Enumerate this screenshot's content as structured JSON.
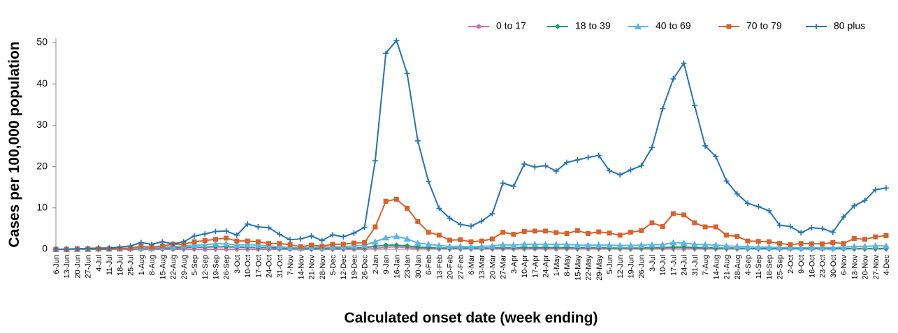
{
  "chart_data": {
    "type": "line",
    "y_label": "Cases per 100,000 population",
    "x_label": "Calculated onset date (week ending)",
    "categories": [
      "6-Jun",
      "13-Jun",
      "20-Jun",
      "27-Jun",
      "4-Jul",
      "11-Jul",
      "18-Jul",
      "25-Jul",
      "1-Aug",
      "8-Aug",
      "15-Aug",
      "22-Aug",
      "29-Aug",
      "5-Sep",
      "12-Sep",
      "19-Sep",
      "26-Sep",
      "3-Oct",
      "10-Oct",
      "17-Oct",
      "24-Oct",
      "31-Oct",
      "7-Nov",
      "14-Nov",
      "21-Nov",
      "28-Nov",
      "5-Dec",
      "12-Dec",
      "19-Dec",
      "26-Dec",
      "2-Jan",
      "9-Jan",
      "16-Jan",
      "23-Jan",
      "30-Jan",
      "6-Feb",
      "13-Feb",
      "20-Feb",
      "27-Feb",
      "6-Mar",
      "13-Mar",
      "20-Mar",
      "27-Mar",
      "3-Apr",
      "10-Apr",
      "17-Apr",
      "24-Apr",
      "1-May",
      "8-May",
      "15-May",
      "22-May",
      "29-May",
      "5-Jun",
      "12-Jun",
      "19-Jun",
      "26-Jun",
      "3-Jul",
      "10-Jul",
      "17-Jul",
      "24-Jul",
      "31-Jul",
      "7-Aug",
      "14-Aug",
      "21-Aug",
      "28-Aug",
      "4-Sep",
      "11-Sep",
      "18-Sep",
      "25-Sep",
      "2-Oct",
      "9-Oct",
      "16-Oct",
      "23-Oct",
      "30-Oct",
      "6-Nov",
      "13-Nov",
      "20-Nov",
      "27-Nov",
      "4-Dec"
    ],
    "ylim": [
      0,
      51
    ],
    "yticks": [
      0,
      10,
      20,
      30,
      40,
      50
    ],
    "series": [
      {
        "name": "0 to 17",
        "color": "#d36fb0",
        "marker": "circle",
        "values": [
          0,
          0,
          0,
          0,
          0,
          0,
          0,
          0,
          0,
          0,
          0,
          0,
          0,
          0,
          0,
          0,
          0,
          0,
          0,
          0,
          0,
          0,
          0,
          0,
          0,
          0,
          0,
          0,
          0,
          0,
          0.2,
          0.5,
          0.6,
          0.4,
          0.2,
          0.1,
          0.1,
          0.1,
          0.1,
          0.1,
          0.1,
          0.1,
          0.1,
          0.1,
          0.1,
          0.1,
          0.1,
          0.1,
          0.1,
          0.1,
          0.1,
          0.1,
          0.1,
          0.1,
          0.1,
          0.1,
          0.1,
          0.1,
          0.1,
          0.1,
          0.1,
          0.1,
          0.1,
          0.1,
          0.1,
          0.1,
          0.1,
          0.1,
          0.1,
          0.1,
          0.1,
          0.1,
          0.1,
          0.1,
          0.1,
          0.1,
          0.1,
          0.1,
          0.1
        ]
      },
      {
        "name": "18 to 39",
        "color": "#1e9c6b",
        "marker": "diamond",
        "values": [
          0,
          0,
          0,
          0,
          0,
          0,
          0.1,
          0.1,
          0.2,
          0.2,
          0.3,
          0.3,
          0.4,
          0.5,
          0.5,
          0.6,
          0.6,
          0.5,
          0.5,
          0.4,
          0.4,
          0.3,
          0.2,
          0.2,
          0.2,
          0.2,
          0.3,
          0.3,
          0.3,
          0.4,
          0.7,
          1.0,
          1.0,
          0.8,
          0.5,
          0.4,
          0.3,
          0.3,
          0.3,
          0.3,
          0.3,
          0.3,
          0.4,
          0.4,
          0.4,
          0.4,
          0.4,
          0.4,
          0.4,
          0.4,
          0.4,
          0.4,
          0.3,
          0.3,
          0.3,
          0.3,
          0.4,
          0.4,
          0.5,
          0.5,
          0.4,
          0.4,
          0.3,
          0.3,
          0.3,
          0.2,
          0.2,
          0.2,
          0.2,
          0.2,
          0.2,
          0.2,
          0.2,
          0.2,
          0.2,
          0.2,
          0.2,
          0.2,
          0.2
        ]
      },
      {
        "name": "40 to 69",
        "color": "#5bb5e6",
        "marker": "triangle",
        "values": [
          0,
          0,
          0,
          0,
          0.1,
          0.1,
          0.1,
          0.2,
          0.3,
          0.3,
          0.5,
          0.6,
          0.8,
          1.0,
          1.1,
          1.3,
          1.3,
          1.0,
          1.1,
          1.0,
          0.8,
          0.6,
          0.4,
          0.3,
          0.5,
          0.4,
          0.6,
          0.6,
          0.8,
          1.0,
          1.8,
          2.8,
          3.1,
          2.5,
          1.5,
          1.2,
          0.9,
          0.7,
          0.7,
          0.6,
          0.7,
          0.8,
          1.1,
          1.0,
          1.2,
          1.2,
          1.2,
          1.2,
          1.2,
          1.0,
          1.0,
          1.0,
          1.0,
          0.9,
          0.9,
          1.0,
          1.1,
          1.1,
          1.6,
          1.5,
          1.2,
          1.1,
          1.0,
          0.8,
          0.7,
          0.6,
          0.5,
          0.5,
          0.4,
          0.4,
          0.4,
          0.4,
          0.4,
          0.4,
          0.5,
          0.7,
          0.7,
          0.8,
          0.8
        ]
      },
      {
        "name": "70 to 79",
        "color": "#d8622b",
        "marker": "square",
        "values": [
          0,
          0,
          0.1,
          0.1,
          0.1,
          0.1,
          0.2,
          0.3,
          0.7,
          0.5,
          0.8,
          1.2,
          1.2,
          1.8,
          2.1,
          2.4,
          2.7,
          2.0,
          2.0,
          1.8,
          1.4,
          1.4,
          1.1,
          0.6,
          1.0,
          0.7,
          1.2,
          1.2,
          1.5,
          1.6,
          5.4,
          11.6,
          12.1,
          9.9,
          6.7,
          4.1,
          3.4,
          2.2,
          2.3,
          1.8,
          2.0,
          2.5,
          4.1,
          3.6,
          4.3,
          4.4,
          4.4,
          4.0,
          3.8,
          4.5,
          3.8,
          4.2,
          3.9,
          3.4,
          4.1,
          4.5,
          6.4,
          5.5,
          8.6,
          8.3,
          6.4,
          5.4,
          5.4,
          3.4,
          3.1,
          2.0,
          1.9,
          1.8,
          1.4,
          1.1,
          1.4,
          1.3,
          1.3,
          1.6,
          1.4,
          2.6,
          2.4,
          3.0,
          3.3
        ]
      },
      {
        "name": "80 plus",
        "color": "#2573b3",
        "marker": "plus",
        "values": [
          0,
          0,
          0.1,
          0.2,
          0.3,
          0.3,
          0.5,
          0.8,
          1.6,
          1.2,
          1.8,
          1.3,
          1.8,
          3.2,
          3.7,
          4.3,
          4.4,
          3.4,
          6.1,
          5.4,
          5.2,
          3.6,
          2.3,
          2.5,
          3.2,
          2.1,
          3.5,
          3.0,
          3.9,
          5.3,
          21.4,
          47.4,
          50.5,
          42.5,
          26.2,
          16.4,
          9.9,
          7.5,
          6.0,
          5.6,
          6.8,
          8.6,
          16.0,
          15.2,
          20.6,
          19.9,
          20.2,
          18.9,
          21.0,
          21.6,
          22.2,
          22.7,
          19.0,
          18.0,
          19.2,
          20.2,
          24.6,
          34.0,
          41.2,
          45.0,
          34.8,
          25.0,
          22.4,
          16.5,
          13.4,
          11.1,
          10.3,
          9.3,
          5.8,
          5.5,
          4.0,
          5.2,
          5.0,
          4.1,
          7.8,
          10.5,
          11.8,
          14.4,
          14.8
        ]
      }
    ]
  }
}
